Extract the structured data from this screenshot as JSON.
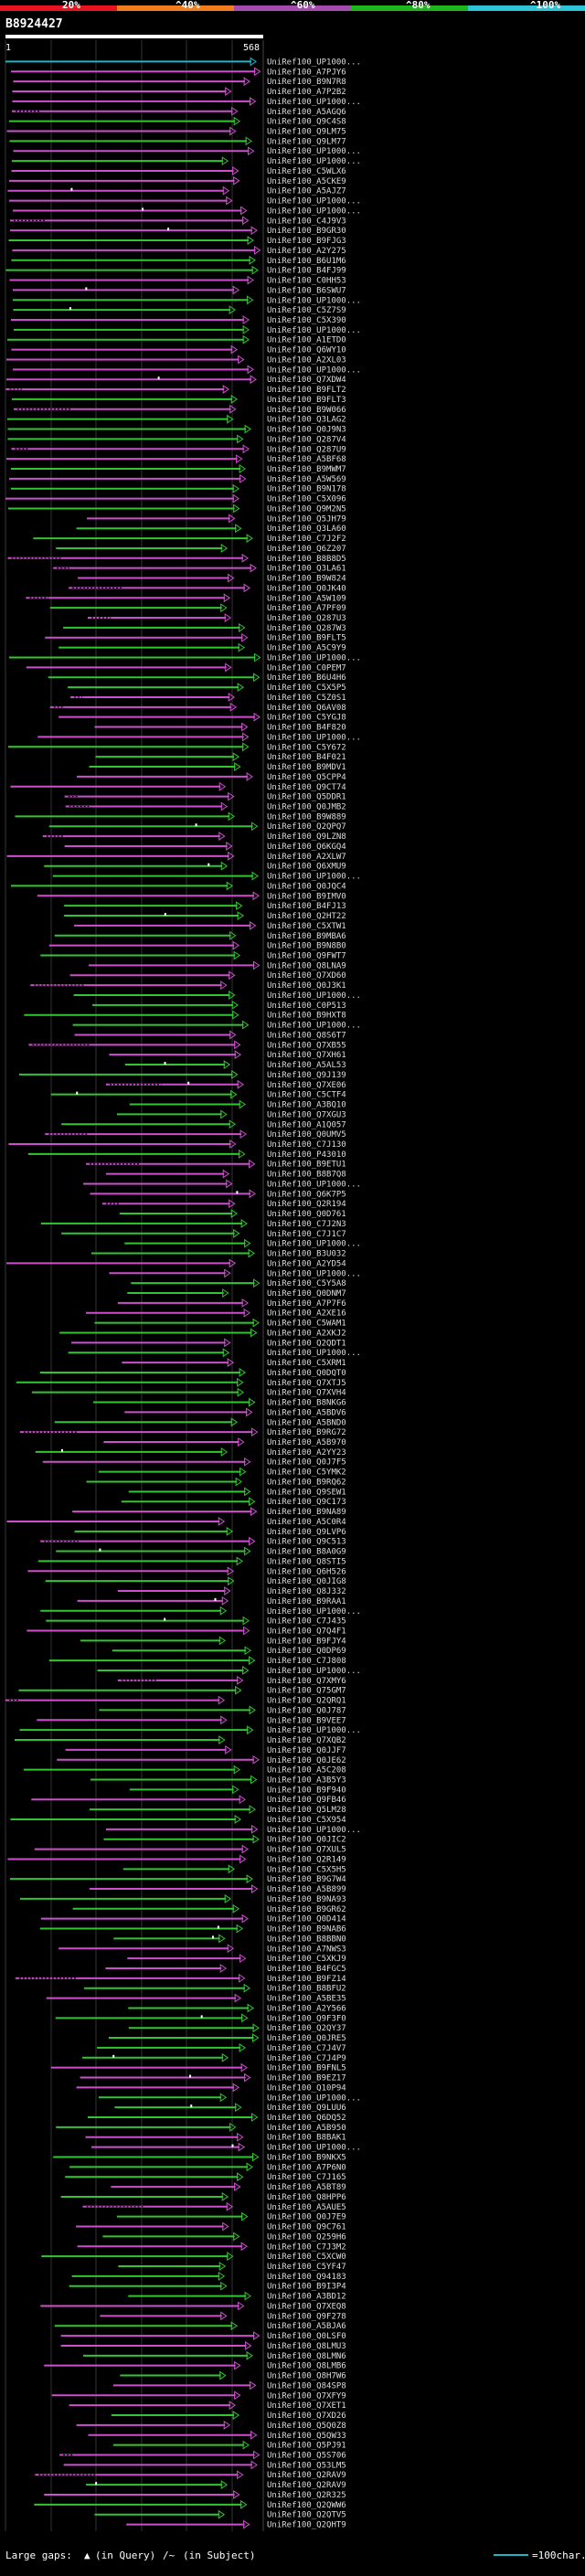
{
  "header": {
    "query_id": "B8924427",
    "bar_start": "1",
    "bar_end": "568"
  },
  "identity_scale": {
    "labels": [
      "20%",
      "^40%",
      "^60%",
      "^80%",
      "^100%"
    ],
    "segment_colors": [
      "#e81221",
      "#f07d1e",
      "#a64ab1",
      "#1fb51d",
      "#2ec4d8"
    ]
  },
  "colors": {
    "background": "#000000",
    "bar_query": "#ffffff",
    "hit_green": "#31c62f",
    "hit_magenta": "#cd4fce",
    "hit_cyan": "#1fb4c8",
    "grid": "#333333"
  },
  "footer": {
    "large_gaps_label": "Large gaps:",
    "query_symbol": "▲",
    "in_query_label": "(in Query)",
    "subject_symbol": "/~",
    "in_subject_label": "(in Subject)",
    "scale_label": "=100char."
  },
  "chart_data": {
    "type": "bar",
    "title": "B8924427",
    "x_axis_range": [
      1,
      568
    ],
    "orientation": "horizontal",
    "hit_labels": [
      "UniRef100_UP1000...",
      "UniRef100_A7PJY6",
      "UniRef100_B9N7R8",
      "UniRef100_A7P2B2",
      "UniRef100_UP1000...",
      "UniRef100_A5AGQ6",
      "UniRef100_Q9C4S8",
      "UniRef100_Q9LM75",
      "UniRef100_Q9LM77",
      "UniRef100_UP1000...",
      "UniRef100_UP1000...",
      "UniRef100_C5WLX6",
      "UniRef100_A5CKE9",
      "UniRef100_A5AJZ7",
      "UniRef100_UP1000...",
      "UniRef100_UP1000...",
      "UniRef100_C4J9V3",
      "UniRef100_B9GR30",
      "UniRef100_B9FJG3",
      "UniRef100_A2Y275",
      "UniRef100_B6U1M6",
      "UniRef100_B4FJ99",
      "UniRef100_C0HH53",
      "UniRef100_B6SWU7",
      "UniRef100_UP1000...",
      "UniRef100_C5Z7S9",
      "UniRef100_C5X390",
      "UniRef100_UP1000...",
      "UniRef100_A1ETD0",
      "UniRef100_Q6WY10",
      "UniRef100_A2XL03",
      "UniRef100_UP1000...",
      "UniRef100_Q7XDW4",
      "UniRef100_B9FLT2",
      "UniRef100_B9FLT3",
      "UniRef100_B9W066",
      "UniRef100_Q3LAG2",
      "UniRef100_Q0J9N3",
      "UniRef100_Q287V4",
      "UniRef100_Q287U9",
      "UniRef100_A5BF68",
      "UniRef100_B9MWM7",
      "UniRef100_A5W569",
      "UniRef100_B9N178",
      "UniRef100_C5X096",
      "UniRef100_Q9M2N5",
      "UniRef100_Q5JH79",
      "UniRef100_Q3LA60",
      "UniRef100_C7J2F2",
      "UniRef100_Q6Z207",
      "UniRef100_B8B8D5",
      "UniRef100_Q3LA61",
      "UniRef100_B9W824",
      "UniRef100_Q0JK40",
      "UniRef100_A5W109",
      "UniRef100_A7PF09",
      "UniRef100_Q287U3",
      "UniRef100_Q287W3",
      "UniRef100_B9FLT5",
      "UniRef100_A5C9Y9",
      "UniRef100_UP1000...",
      "UniRef100_C0PEM7",
      "UniRef100_B6U4H6",
      "UniRef100_C5X5P5",
      "UniRef100_C5Z0S1",
      "UniRef100_Q6AV08",
      "UniRef100_C5YGJ8",
      "UniRef100_B4F820",
      "UniRef100_UP1000...",
      "UniRef100_C5Y672",
      "UniRef100_B4F021",
      "UniRef100_B9MDV1",
      "UniRef100_Q5CPP4",
      "UniRef100_Q9CT74",
      "UniRef100_Q5DDR1",
      "UniRef100_Q0JMB2",
      "UniRef100_B9W889",
      "UniRef100_Q2QPQ7",
      "UniRef100_Q9LZN8",
      "UniRef100_Q6KGQ4",
      "UniRef100_A2XLW7",
      "UniRef100_Q6XMU9",
      "UniRef100_UP1000...",
      "UniRef100_Q0JQC4",
      "UniRef100_B9IMV0",
      "UniRef100_B4FJ13",
      "UniRef100_Q2HT22",
      "UniRef100_C5XTW1",
      "UniRef100_B9MBA6",
      "UniRef100_B9N8B0",
      "UniRef100_Q9FWT7",
      "UniRef100_Q8LNA9",
      "UniRef100_Q7XD60",
      "UniRef100_Q0J3K1",
      "UniRef100_UP1000...",
      "UniRef100_C0P513",
      "UniRef100_B9HXT8",
      "UniRef100_UP1000...",
      "UniRef100_Q8S6T7",
      "UniRef100_Q7XB55",
      "UniRef100_Q7XH61",
      "UniRef100_A5AL53",
      "UniRef100_Q9J139",
      "UniRef100_Q7XE06",
      "UniRef100_C5CTF4",
      "UniRef100_A3BQ10",
      "UniRef100_Q7XGU3",
      "UniRef100_A1Q057",
      "UniRef100_Q0UMV5",
      "UniRef100_C7J130",
      "UniRef100_P43010",
      "UniRef100_B9ETU1",
      "UniRef100_B8B7Q8",
      "UniRef100_UP1000...",
      "UniRef100_Q6K7P5",
      "UniRef100_Q2R194",
      "UniRef100_Q0D761",
      "UniRef100_C7J2N3",
      "UniRef100_C7J1C7",
      "UniRef100_UP1000...",
      "UniRef100_B3U032",
      "UniRef100_A2YD54",
      "UniRef100_UP1000...",
      "UniRef100_C5Y5A8",
      "UniRef100_Q0DNM7",
      "UniRef100_A7P7F6",
      "UniRef100_A2XE16",
      "UniRef100_C5WAM1",
      "UniRef100_A2XKJ2",
      "UniRef100_Q2QDT1",
      "UniRef100_UP1000...",
      "UniRef100_C5XRM1",
      "UniRef100_Q0DQT0",
      "UniRef100_Q7XTJ5",
      "UniRef100_Q7XVH4",
      "UniRef100_B8NKG6",
      "UniRef100_A5BDV6",
      "UniRef100_A5BND0",
      "UniRef100_B9RG72",
      "UniRef100_A5B970",
      "UniRef100_A2YY23",
      "UniRef100_Q0J7F5",
      "UniRef100_C5YMK2",
      "UniRef100_B9RQ62",
      "UniRef100_Q9SEW1",
      "UniRef100_Q9C173",
      "UniRef100_B9NA89",
      "UniRef100_A5C0R4",
      "UniRef100_Q9LVP6",
      "UniRef100_Q9C513",
      "UniRef100_B8A0G9",
      "UniRef100_Q8STI5",
      "UniRef100_Q6H526",
      "UniRef100_Q0JIG8",
      "UniRef100_Q8J332",
      "UniRef100_B9RAA1",
      "UniRef100_UP1000...",
      "UniRef100_C7J435",
      "UniRef100_Q7Q4F1",
      "UniRef100_B9FJY4",
      "UniRef100_Q0DP69",
      "UniRef100_C7J808",
      "UniRef100_UP1000...",
      "UniRef100_Q7XMY6",
      "UniRef100_Q75GM7",
      "UniRef100_Q2QRQ1",
      "UniRef100_Q0J787",
      "UniRef100_B9VEE7",
      "UniRef100_UP1000...",
      "UniRef100_Q7XQB2",
      "UniRef100_Q0JJF7",
      "UniRef100_Q0JE62",
      "UniRef100_A5C208",
      "UniRef100_A3B5Y3",
      "UniRef100_B9F940",
      "UniRef100_Q9FB46",
      "UniRef100_Q5LM28",
      "UniRef100_C5X954",
      "UniRef100_UP1000...",
      "UniRef100_Q0JIC2",
      "UniRef100_Q7XUL5",
      "UniRef100_Q2R149",
      "UniRef100_C5X5H5",
      "UniRef100_B9G7W4",
      "UniRef100_A5B899",
      "UniRef100_B9NA93",
      "UniRef100_B9GR62",
      "UniRef100_Q0D414",
      "UniRef100_B9NAB6",
      "UniRef100_B8BBN0",
      "UniRef100_A7NWS3",
      "UniRef100_C5XKJ9",
      "UniRef100_B4FGC5",
      "UniRef100_B9FZ14",
      "UniRef100_B8BFU2",
      "UniRef100_A5BE35",
      "UniRef100_A2Y566",
      "UniRef100_Q9F3F0",
      "UniRef100_Q2QY37",
      "UniRef100_Q0JRE5",
      "UniRef100_C7J4V7",
      "UniRef100_C7J4P9",
      "UniRef100_B9FNL5",
      "UniRef100_B9EZ17",
      "UniRef100_Q10P94",
      "UniRef100_UP1000...",
      "UniRef100_Q9LUU6",
      "UniRef100_Q6DQ52",
      "UniRef100_A5B950",
      "UniRef100_B8BAK1",
      "UniRef100_UP1000...",
      "UniRef100_B9NKX5",
      "UniRef100_A7P6N0",
      "UniRef100_C7J165",
      "UniRef100_A5BT89",
      "UniRef100_Q8HPP6",
      "UniRef100_A5AUE5",
      "UniRef100_Q0J7E9",
      "UniRef100_Q9C761",
      "UniRef100_Q259H6",
      "UniRef100_C7J3M2",
      "UniRef100_C5XCW0",
      "UniRef100_C5YF47",
      "UniRef100_Q94183",
      "UniRef100_B9I3P4",
      "UniRef100_A3BD12",
      "UniRef100_Q7XEQ8",
      "UniRef100_Q9F278",
      "UniRef100_A5BJA6",
      "UniRef100_Q0LSF0",
      "UniRef100_Q8LMU3",
      "UniRef100_Q8LMN6",
      "UniRef100_Q8LMB6",
      "UniRef100_Q8H7W6",
      "UniRef100_Q84SP8",
      "UniRef100_Q7XFY9",
      "UniRef100_Q7XET1",
      "UniRef100_Q7XD26",
      "UniRef100_Q5Q0Z8",
      "UniRef100_Q5QW33",
      "UniRef100_Q5PJ91",
      "UniRef100_Q5S706",
      "UniRef100_Q53LM5",
      "UniRef100_Q2RAV9",
      "UniRef100_Q2RAV9",
      "UniRef100_Q2R325",
      "UniRef100_Q2QWW6",
      "UniRef100_Q2QTV5",
      "UniRef100_Q2QHT9"
    ]
  }
}
